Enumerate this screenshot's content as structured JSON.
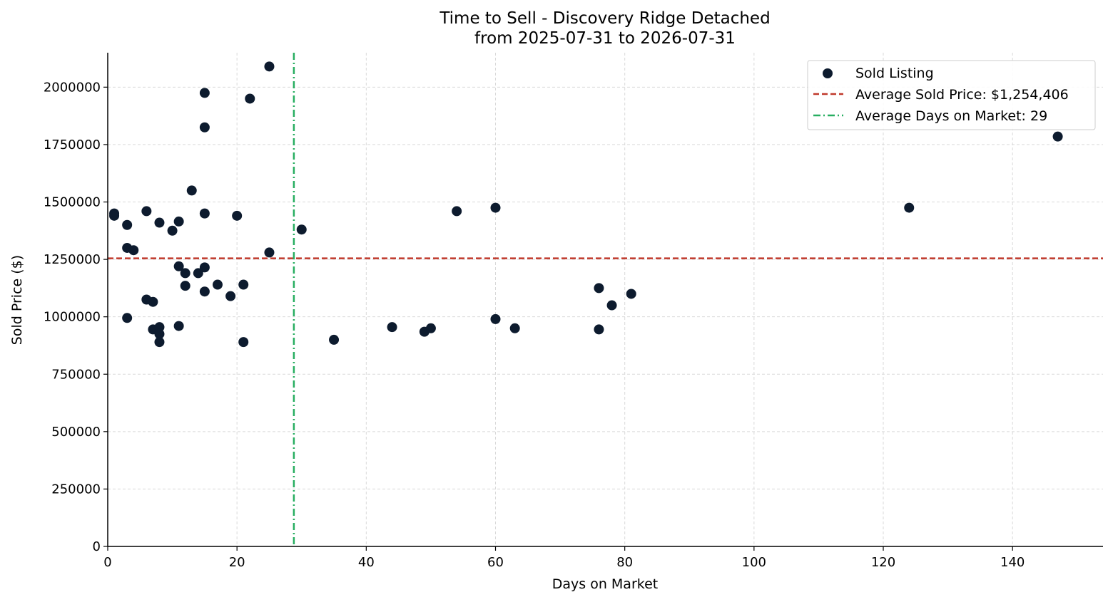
{
  "chart_data": {
    "type": "scatter",
    "title": "Time to Sell - Discovery Ridge Detached",
    "subtitle": "from 2025-07-31 to 2026-07-31",
    "xlabel": "Days on Market",
    "ylabel": "Sold Price ($)",
    "xlim": [
      0,
      154
    ],
    "ylim": [
      0,
      2150000
    ],
    "xticks": [
      0,
      20,
      40,
      60,
      80,
      100,
      120,
      140
    ],
    "yticks": [
      0,
      250000,
      500000,
      750000,
      1000000,
      1250000,
      1500000,
      1750000,
      2000000
    ],
    "grid": true,
    "legend_position": "top-right",
    "colors": {
      "points": "#0d1b2e",
      "avg_price_line": "#c0392b",
      "avg_days_line": "#27ae60"
    },
    "series": [
      {
        "name": "Sold Listing",
        "points": [
          [
            1,
            1450000
          ],
          [
            1,
            1440000
          ],
          [
            3,
            1400000
          ],
          [
            3,
            1300000
          ],
          [
            4,
            1290000
          ],
          [
            3,
            995000
          ],
          [
            6,
            1460000
          ],
          [
            6,
            1075000
          ],
          [
            7,
            1065000
          ],
          [
            7,
            945000
          ],
          [
            8,
            955000
          ],
          [
            8,
            925000
          ],
          [
            8,
            890000
          ],
          [
            8,
            1410000
          ],
          [
            10,
            1375000
          ],
          [
            11,
            1415000
          ],
          [
            11,
            1220000
          ],
          [
            11,
            960000
          ],
          [
            12,
            1190000
          ],
          [
            12,
            1135000
          ],
          [
            13,
            1550000
          ],
          [
            14,
            1190000
          ],
          [
            15,
            1975000
          ],
          [
            15,
            1825000
          ],
          [
            15,
            1450000
          ],
          [
            15,
            1215000
          ],
          [
            15,
            1110000
          ],
          [
            17,
            1140000
          ],
          [
            19,
            1090000
          ],
          [
            20,
            1440000
          ],
          [
            21,
            1140000
          ],
          [
            21,
            890000
          ],
          [
            22,
            1950000
          ],
          [
            25,
            2090000
          ],
          [
            25,
            1280000
          ],
          [
            30,
            1380000
          ],
          [
            35,
            900000
          ],
          [
            44,
            955000
          ],
          [
            49,
            935000
          ],
          [
            50,
            950000
          ],
          [
            54,
            1460000
          ],
          [
            60,
            1475000
          ],
          [
            60,
            990000
          ],
          [
            63,
            950000
          ],
          [
            76,
            1125000
          ],
          [
            76,
            945000
          ],
          [
            78,
            1050000
          ],
          [
            81,
            1100000
          ],
          [
            124,
            1475000
          ],
          [
            147,
            1785000
          ]
        ]
      }
    ],
    "reference_lines": {
      "avg_price": {
        "label": "Average Sold Price: $1,254,406",
        "value": 1254406
      },
      "avg_days": {
        "label": "Average Days on Market: 29",
        "value": 28.8
      }
    }
  }
}
